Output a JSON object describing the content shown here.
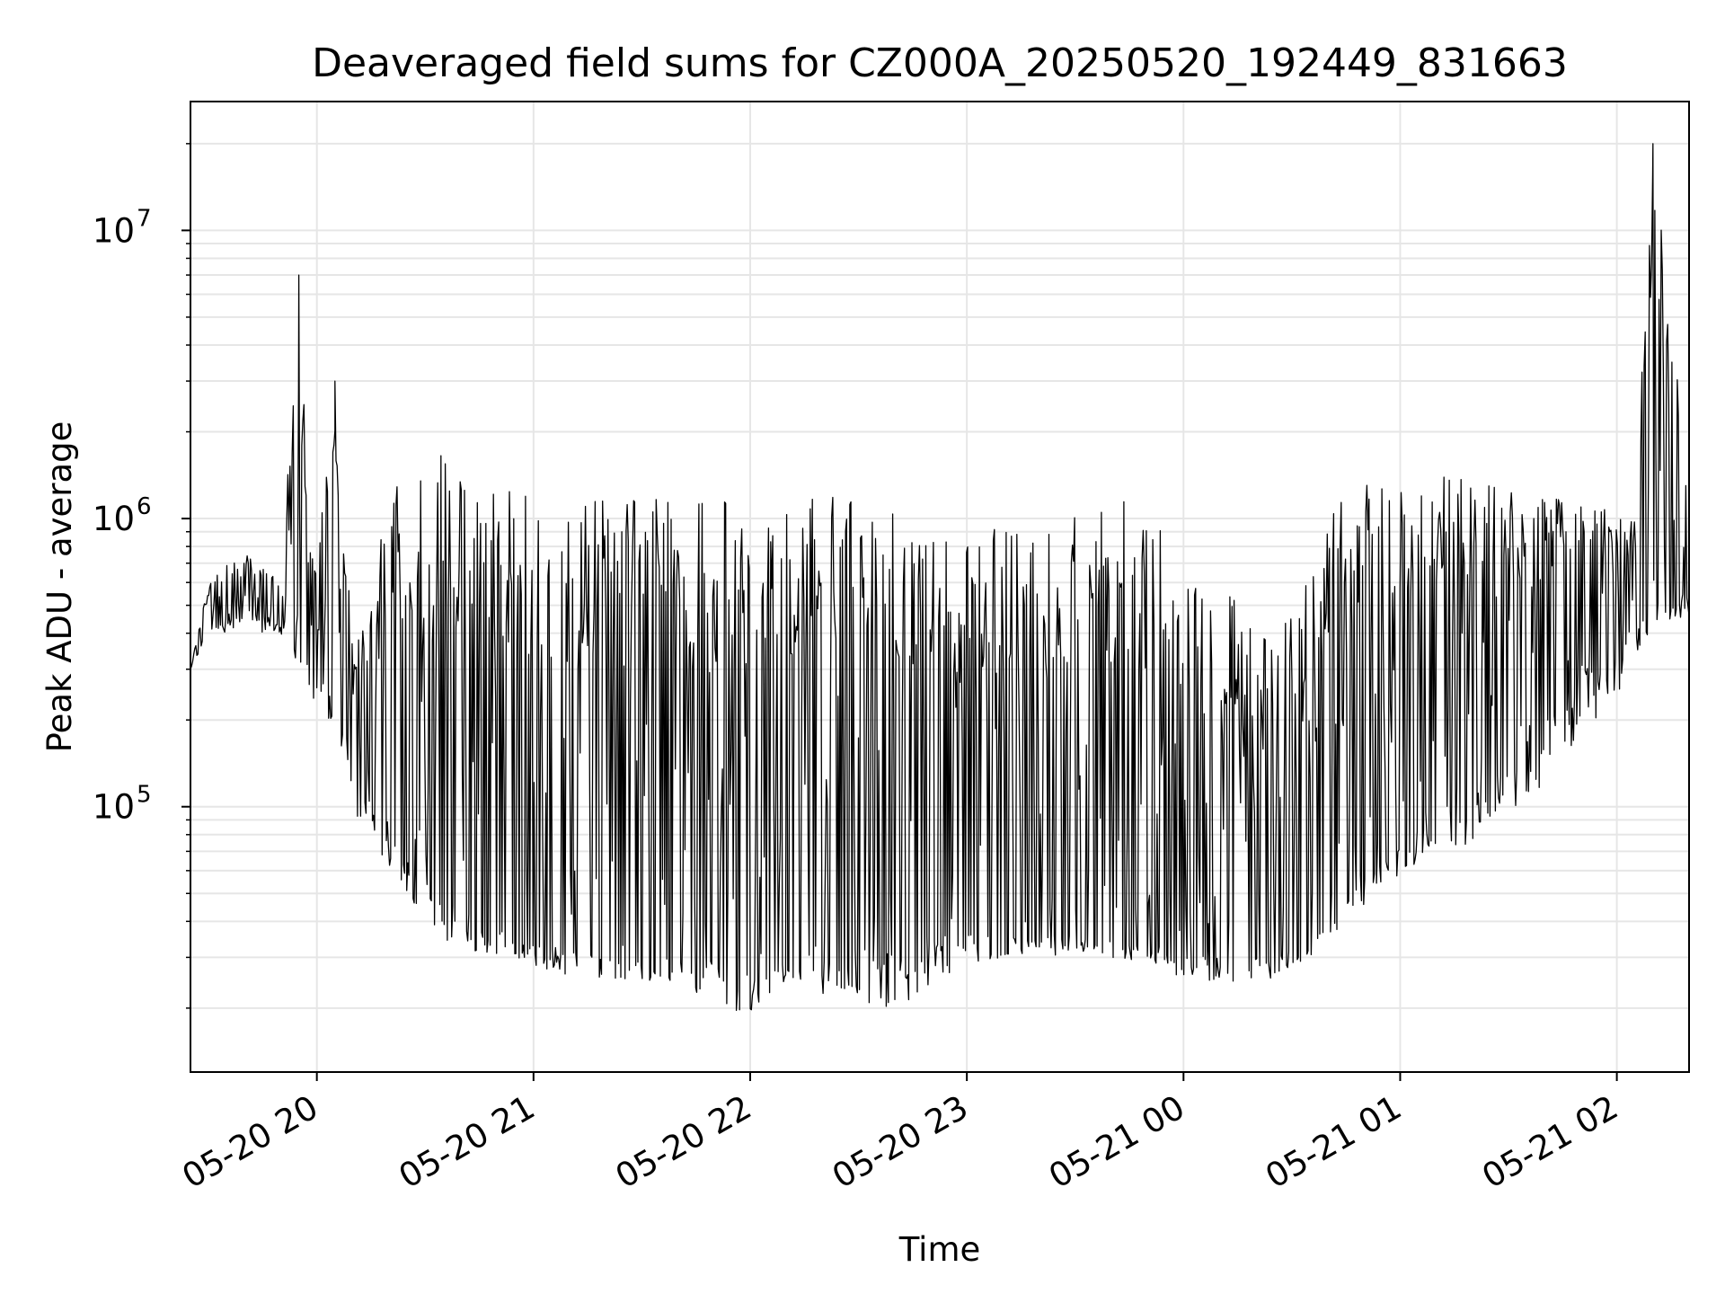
{
  "chart_data": {
    "type": "line",
    "title": "Deaveraged field sums for CZ000A_20250520_192449_831663",
    "xlabel": "Time",
    "ylabel": "Peak ADU - average",
    "x_scale": "time",
    "y_scale": "log",
    "xlim": [
      "2025-05-20 19:25",
      "2025-05-21 02:20"
    ],
    "ylim": [
      12000,
      28000000
    ],
    "grid": true,
    "line_color": "#000000",
    "x_tick_labels": [
      "05-20 20",
      "05-20 21",
      "05-20 22",
      "05-20 23",
      "05-21 00",
      "05-21 01",
      "05-21 02"
    ],
    "x_tick_values": [
      "2025-05-20 20:00",
      "2025-05-20 21:00",
      "2025-05-20 22:00",
      "2025-05-20 23:00",
      "2025-05-21 00:00",
      "2025-05-21 01:00",
      "2025-05-21 02:00"
    ],
    "y_ticks": [
      {
        "value": 100000,
        "base": "10",
        "exp": "5"
      },
      {
        "value": 1000000,
        "base": "10",
        "exp": "6"
      },
      {
        "value": 10000000,
        "base": "10",
        "exp": "7"
      }
    ],
    "series": [
      {
        "x": [
          "2025-05-20 19:25",
          "2025-05-20 19:30",
          "2025-05-20 19:35",
          "2025-05-20 19:40",
          "2025-05-20 19:45",
          "2025-05-20 19:50",
          "2025-05-20 19:55",
          "2025-05-20 19:58",
          "2025-05-20 20:00",
          "2025-05-20 20:05",
          "2025-05-20 20:10",
          "2025-05-20 20:15",
          "2025-05-20 20:20",
          "2025-05-20 20:25",
          "2025-05-20 20:30",
          "2025-05-20 20:35",
          "2025-05-20 20:40",
          "2025-05-20 20:45",
          "2025-05-20 20:50",
          "2025-05-20 20:55",
          "2025-05-20 21:00",
          "2025-05-20 21:10",
          "2025-05-20 21:20",
          "2025-05-20 21:30",
          "2025-05-20 21:40",
          "2025-05-20 21:50",
          "2025-05-20 21:59",
          "2025-05-20 22:10",
          "2025-05-20 22:20",
          "2025-05-20 22:30",
          "2025-05-20 22:40",
          "2025-05-20 22:44",
          "2025-05-20 22:50",
          "2025-05-20 23:00",
          "2025-05-20 23:10",
          "2025-05-20 23:20",
          "2025-05-20 23:30",
          "2025-05-20 23:40",
          "2025-05-20 23:50",
          "2025-05-20 23:58",
          "2025-05-21 00:05",
          "2025-05-21 00:15",
          "2025-05-21 00:25",
          "2025-05-21 00:35",
          "2025-05-21 00:45",
          "2025-05-21 00:55",
          "2025-05-21 01:05",
          "2025-05-21 01:15",
          "2025-05-21 01:25",
          "2025-05-21 01:35",
          "2025-05-21 01:45",
          "2025-05-21 01:55",
          "2025-05-21 02:05",
          "2025-05-21 02:10",
          "2025-05-21 02:20"
        ],
        "hi": [
          300000,
          600000,
          700000,
          750000,
          700000,
          600000,
          7000000,
          800000,
          700000,
          3000000,
          400000,
          500000,
          1300000,
          1400000,
          1500000,
          2000000,
          1400000,
          1400000,
          1300000,
          1400000,
          1400000,
          1300000,
          1250000,
          1200000,
          1200000,
          1150000,
          1150000,
          1100000,
          1200000,
          1150000,
          1100000,
          1100000,
          900000,
          800000,
          1000000,
          900000,
          1200000,
          1200000,
          1100000,
          900000,
          700000,
          600000,
          500000,
          700000,
          1300000,
          1400000,
          1400000,
          1400000,
          1300000,
          1300000,
          1200000,
          1100000,
          1000000,
          20000000,
          1400000
        ],
        "lo": [
          300000,
          400000,
          400000,
          450000,
          400000,
          400000,
          300000,
          250000,
          200000,
          200000,
          100000,
          70000,
          60000,
          50000,
          40000,
          35000,
          32000,
          30000,
          30000,
          29000,
          28000,
          26000,
          25000,
          24000,
          23000,
          22000,
          18000,
          24000,
          22000,
          21000,
          20000,
          17000,
          25000,
          28000,
          30000,
          30000,
          31000,
          30000,
          29000,
          26000,
          25000,
          24000,
          25000,
          30000,
          40000,
          50000,
          60000,
          70000,
          80000,
          100000,
          150000,
          200000,
          300000,
          400000,
          450000
        ],
        "y": [
          300000,
          500000,
          500000,
          550000,
          500000,
          450000,
          600000,
          500000,
          500000,
          400000,
          180000,
          150000,
          110000,
          90000,
          75000,
          65000,
          60000,
          55000,
          48000,
          45000,
          42000,
          40000,
          38000,
          37000,
          38000,
          40000,
          38000,
          40000,
          45000,
          50000,
          55000,
          45000,
          50000,
          48000,
          45000,
          44000,
          42000,
          40000,
          40000,
          38000,
          38000,
          36000,
          38000,
          45000,
          60000,
          80000,
          120000,
          150000,
          200000,
          300000,
          400000,
          500000,
          600000,
          650000,
          650000
        ]
      }
    ]
  }
}
